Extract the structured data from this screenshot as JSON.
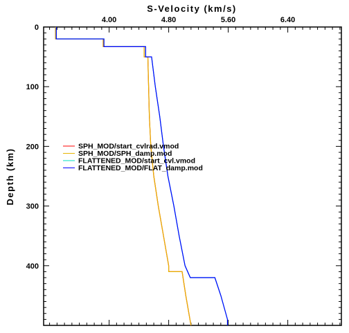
{
  "chart_data": {
    "type": "line",
    "title": "S-Velocity (km/s)",
    "xlabel": "S-Velocity (km/s)",
    "ylabel": "Depth (km)",
    "xlim": [
      3.12,
      7.12
    ],
    "ylim": [
      0,
      500
    ],
    "y_inverted": true,
    "x_axis_position": "top",
    "x_ticks": [
      4.0,
      4.8,
      5.6,
      6.4
    ],
    "x_tick_labels": [
      "4.00",
      "4.80",
      "5.60",
      "6.40"
    ],
    "y_ticks": [
      0,
      100,
      200,
      300,
      400
    ],
    "y_tick_labels": [
      "0",
      "100",
      "200",
      "300",
      "400"
    ],
    "legend_position": "middle-left",
    "series": [
      {
        "name": "SPH_MOD/start_cvlrad.vmod",
        "color": "#ff0000",
        "points": [
          [
            3.28,
            0
          ],
          [
            3.28,
            20
          ],
          [
            3.92,
            20
          ],
          [
            3.92,
            33
          ],
          [
            4.47,
            33
          ],
          [
            4.47,
            50
          ],
          [
            4.52,
            50
          ],
          [
            4.53,
            100
          ],
          [
            4.54,
            150
          ],
          [
            4.56,
            200
          ],
          [
            4.6,
            250
          ],
          [
            4.66,
            300
          ],
          [
            4.73,
            350
          ],
          [
            4.8,
            400
          ],
          [
            4.8,
            410
          ],
          [
            4.98,
            410
          ],
          [
            5.03,
            450
          ],
          [
            5.1,
            500
          ]
        ]
      },
      {
        "name": "SPH_MOD/SPH_damp.mod",
        "color": "#e6b400",
        "points": [
          [
            3.28,
            0
          ],
          [
            3.28,
            20
          ],
          [
            3.92,
            20
          ],
          [
            3.92,
            33
          ],
          [
            4.47,
            33
          ],
          [
            4.47,
            50
          ],
          [
            4.52,
            50
          ],
          [
            4.53,
            100
          ],
          [
            4.54,
            150
          ],
          [
            4.56,
            200
          ],
          [
            4.6,
            250
          ],
          [
            4.66,
            300
          ],
          [
            4.73,
            350
          ],
          [
            4.8,
            400
          ],
          [
            4.8,
            410
          ],
          [
            4.98,
            410
          ],
          [
            5.03,
            450
          ],
          [
            5.1,
            500
          ]
        ]
      },
      {
        "name": "FLATTENED_MOD/start_cvl.vmod",
        "color": "#00e0c0",
        "points": [
          [
            3.29,
            0
          ],
          [
            3.29,
            20
          ],
          [
            3.93,
            20
          ],
          [
            3.93,
            33
          ],
          [
            4.49,
            33
          ],
          [
            4.49,
            50
          ],
          [
            4.57,
            50
          ],
          [
            4.62,
            100
          ],
          [
            4.68,
            150
          ],
          [
            4.73,
            200
          ],
          [
            4.79,
            250
          ],
          [
            4.87,
            300
          ],
          [
            4.94,
            350
          ],
          [
            5.02,
            400
          ],
          [
            5.09,
            420
          ],
          [
            5.42,
            420
          ],
          [
            5.5,
            450
          ],
          [
            5.59,
            490
          ],
          [
            5.59,
            500
          ]
        ]
      },
      {
        "name": "FLATTENED_MOD/FLAT_damp.mod",
        "color": "#0000ff",
        "points": [
          [
            3.29,
            0
          ],
          [
            3.29,
            20
          ],
          [
            3.93,
            20
          ],
          [
            3.93,
            33
          ],
          [
            4.49,
            33
          ],
          [
            4.49,
            50
          ],
          [
            4.57,
            50
          ],
          [
            4.62,
            100
          ],
          [
            4.68,
            150
          ],
          [
            4.73,
            200
          ],
          [
            4.79,
            250
          ],
          [
            4.87,
            300
          ],
          [
            4.94,
            350
          ],
          [
            5.02,
            400
          ],
          [
            5.09,
            420
          ],
          [
            5.42,
            420
          ],
          [
            5.5,
            450
          ],
          [
            5.59,
            490
          ],
          [
            5.59,
            500
          ]
        ]
      }
    ]
  }
}
